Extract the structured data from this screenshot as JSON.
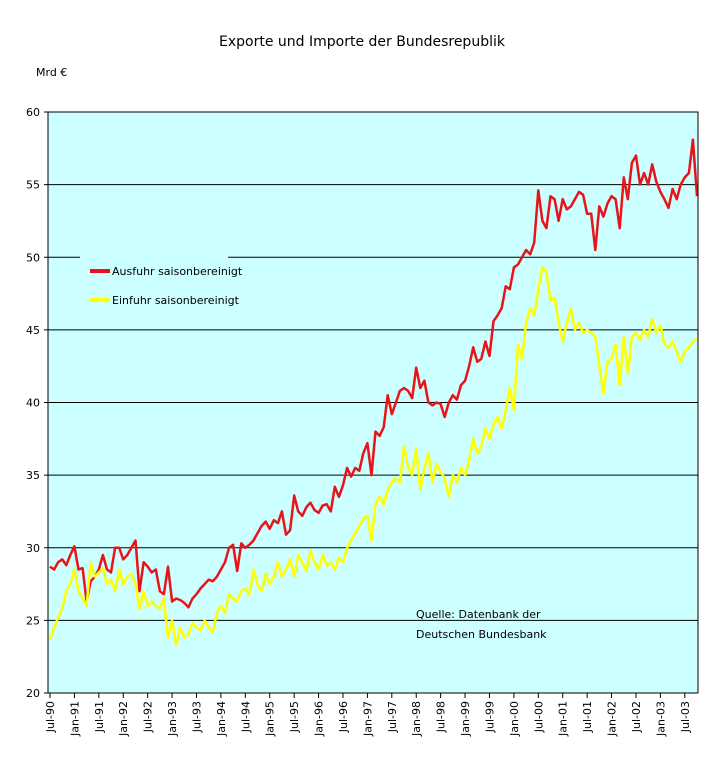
{
  "chart_data": {
    "type": "line",
    "title": "Exporte und Importe der Bundesrepublik",
    "y_label": "Mrd €",
    "annotation": [
      "Quelle: Datenbank der",
      "Deutschen Bundesbank"
    ],
    "ylim": [
      20,
      60
    ],
    "yticks": [
      20,
      25,
      30,
      35,
      40,
      45,
      50,
      55,
      60
    ],
    "grid": true,
    "plot_background": "#ccffff",
    "categories": [
      "Jul-90",
      null,
      null,
      null,
      null,
      null,
      "Jan-91",
      null,
      null,
      null,
      null,
      null,
      "Jul-91",
      null,
      null,
      null,
      null,
      null,
      "Jan-92",
      null,
      null,
      null,
      null,
      null,
      "Jul-92",
      null,
      null,
      null,
      null,
      null,
      "Jan-93",
      null,
      null,
      null,
      null,
      null,
      "Jul-93",
      null,
      null,
      null,
      null,
      null,
      "Jan-94",
      null,
      null,
      null,
      null,
      null,
      "Jul-94",
      null,
      null,
      null,
      null,
      null,
      "Jan-95",
      null,
      null,
      null,
      null,
      null,
      "Jul-95",
      null,
      null,
      null,
      null,
      null,
      "Jan-96",
      null,
      null,
      null,
      null,
      null,
      "Jul-96",
      null,
      null,
      null,
      null,
      null,
      "Jan-97",
      null,
      null,
      null,
      null,
      null,
      "Jul-97",
      null,
      null,
      null,
      null,
      null,
      "Jan-98",
      null,
      null,
      null,
      null,
      null,
      "Jul-98",
      null,
      null,
      null,
      null,
      null,
      "Jan-99",
      null,
      null,
      null,
      null,
      null,
      "Jul-99",
      null,
      null,
      null,
      null,
      null,
      "Jan-00",
      null,
      null,
      null,
      null,
      null,
      "Jul-00",
      null,
      null,
      null,
      null,
      null,
      "Jan-01",
      null,
      null,
      null,
      null,
      null,
      "Jul-01",
      null,
      null,
      null,
      null,
      null,
      "Jan-02",
      null,
      null,
      null,
      null,
      null,
      "Jul-02",
      null,
      null,
      null,
      null,
      null,
      "Jan-03",
      null,
      null,
      null,
      null,
      null,
      "Jul-03",
      null,
      null,
      null
    ],
    "series": [
      {
        "name": "Ausfuhr saisonbereinigt",
        "color": "#e8141a",
        "values": [
          28.7,
          28.5,
          29.0,
          29.2,
          28.8,
          29.5,
          30.1,
          28.5,
          28.6,
          26.3,
          27.7,
          28.0,
          28.5,
          29.5,
          28.5,
          28.3,
          30.0,
          30.0,
          29.2,
          29.5,
          30.0,
          30.5,
          27.0,
          29.0,
          28.7,
          28.3,
          28.5,
          27.0,
          26.8,
          28.7,
          26.3,
          26.5,
          26.4,
          26.2,
          25.9,
          26.5,
          26.8,
          27.2,
          27.5,
          27.8,
          27.7,
          28.0,
          28.5,
          29.0,
          30.0,
          30.2,
          28.4,
          30.3,
          30.0,
          30.2,
          30.5,
          31.0,
          31.5,
          31.8,
          31.3,
          31.9,
          31.7,
          32.5,
          30.9,
          31.2,
          33.6,
          32.5,
          32.2,
          32.8,
          33.1,
          32.6,
          32.4,
          32.9,
          33.0,
          32.5,
          34.2,
          33.5,
          34.3,
          35.5,
          34.9,
          35.5,
          35.3,
          36.5,
          37.2,
          35.0,
          38.0,
          37.7,
          38.3,
          40.5,
          39.2,
          40.0,
          40.8,
          41.0,
          40.8,
          40.3,
          42.4,
          41.0,
          41.5,
          40.0,
          39.8,
          40.0,
          39.9,
          39.0,
          40.0,
          40.5,
          40.2,
          41.2,
          41.5,
          42.5,
          43.8,
          42.8,
          43.0,
          44.2,
          43.2,
          45.6,
          46.0,
          46.5,
          48.0,
          47.8,
          49.3,
          49.5,
          50.0,
          50.5,
          50.2,
          51.0,
          54.6,
          52.5,
          52.0,
          54.2,
          54.0,
          52.5,
          54.0,
          53.3,
          53.5,
          54.0,
          54.5,
          54.3,
          53.0,
          53.0,
          50.5,
          53.5,
          52.8,
          53.7,
          54.2,
          54.0,
          52.0,
          55.5,
          54.0,
          56.5,
          57.0,
          55.0,
          55.8,
          55.0,
          56.4,
          55.2,
          54.5,
          54.0,
          53.4,
          54.7,
          54.0,
          55.0,
          55.5,
          55.8,
          58.1,
          54.2
        ]
      },
      {
        "name": "Einfuhr saisonbereinigt",
        "color": "#ffff00",
        "values": [
          23.7,
          24.5,
          25.2,
          25.8,
          27.0,
          27.5,
          28.5,
          27.0,
          26.5,
          26.0,
          29.0,
          28.0,
          28.3,
          28.6,
          27.5,
          27.8,
          27.0,
          28.5,
          27.5,
          28.0,
          28.2,
          27.5,
          25.8,
          27.0,
          26.0,
          26.3,
          26.0,
          25.8,
          26.5,
          23.8,
          25.0,
          23.3,
          24.5,
          23.8,
          24.0,
          24.8,
          24.5,
          24.3,
          25.0,
          24.5,
          24.2,
          25.5,
          26.0,
          25.5,
          26.8,
          26.5,
          26.3,
          27.0,
          27.2,
          26.8,
          28.5,
          27.5,
          27.0,
          28.2,
          27.5,
          28.0,
          29.0,
          28.0,
          28.5,
          29.2,
          28.0,
          29.5,
          29.0,
          28.4,
          29.8,
          29.0,
          28.5,
          29.5,
          28.8,
          29.0,
          28.5,
          29.3,
          29.0,
          30.0,
          30.5,
          31.0,
          31.5,
          32.0,
          32.2,
          30.5,
          33.0,
          33.5,
          33.0,
          34.0,
          34.5,
          34.8,
          34.5,
          37.0,
          35.5,
          35.0,
          36.8,
          34.0,
          35.5,
          36.5,
          34.5,
          35.8,
          35.2,
          34.8,
          33.5,
          35.0,
          34.5,
          35.5,
          35.0,
          36.0,
          37.5,
          36.5,
          37.0,
          38.2,
          37.5,
          38.5,
          39.0,
          38.2,
          39.5,
          41.0,
          39.5,
          44.0,
          43.0,
          45.5,
          46.5,
          46.0,
          47.8,
          49.3,
          49.0,
          47.0,
          47.2,
          45.5,
          44.2,
          45.5,
          46.5,
          45.0,
          45.5,
          44.8,
          45.0,
          44.8,
          44.5,
          42.5,
          40.6,
          42.8,
          43.0,
          44.0,
          41.2,
          44.5,
          42.0,
          44.5,
          44.8,
          44.3,
          45.0,
          44.5,
          45.8,
          44.8,
          45.3,
          44.0,
          43.8,
          44.2,
          43.5,
          42.8,
          43.5,
          43.8,
          44.2,
          44.4
        ]
      }
    ]
  }
}
